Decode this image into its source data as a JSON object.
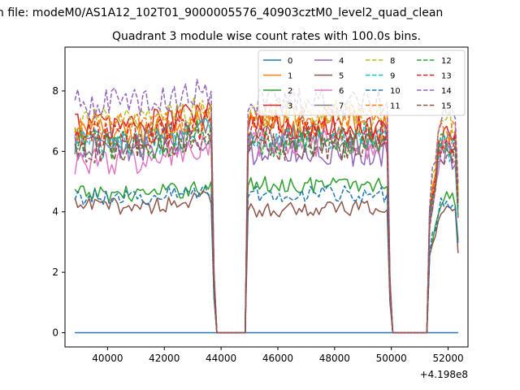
{
  "figure": {
    "suptitle": "n file: modeM0/AS1A12_102T01_9000005576_40903cztM0_level2_quad_clean",
    "title": "Quadrant 3 module wise count rates with 100.0s bins.",
    "offset_label": "+4.198e8"
  },
  "chart_data": {
    "type": "line",
    "title": "Quadrant 3 module wise count rates with 100.0s bins.",
    "xlabel": "",
    "ylabel": "",
    "x_offset": 419800000,
    "xlim": [
      38500,
      52700
    ],
    "ylim": [
      -0.47,
      9.45
    ],
    "x_ticks": [
      40000,
      42000,
      44000,
      46000,
      48000,
      50000,
      52000
    ],
    "x_tick_labels": [
      "40000",
      "42000",
      "44000",
      "46000",
      "48000",
      "50000",
      "52000"
    ],
    "y_ticks": [
      0,
      2,
      4,
      6,
      8
    ],
    "y_tick_labels": [
      "0",
      "2",
      "4",
      "6",
      "8"
    ],
    "grid": false,
    "legend_position": "top-right",
    "legend_columns": 4,
    "data_range": {
      "x_start": 38850,
      "x_end": 52350,
      "bin": 100
    },
    "gaps": [
      [
        43800,
        44900
      ],
      [
        50000,
        51300
      ]
    ],
    "series": [
      {
        "name": "0",
        "color": "#1f77b4",
        "dash": "solid",
        "level": [
          0,
          0,
          0
        ]
      },
      {
        "name": "1",
        "color": "#ff7f0e",
        "dash": "solid",
        "level": [
          6.6,
          6.8,
          6.5
        ]
      },
      {
        "name": "2",
        "color": "#2ca02c",
        "dash": "solid",
        "level": [
          4.6,
          4.9,
          4.4
        ]
      },
      {
        "name": "3",
        "color": "#d62728",
        "dash": "solid",
        "level": [
          6.9,
          6.8,
          6.4
        ]
      },
      {
        "name": "4",
        "color": "#9467bd",
        "dash": "solid",
        "level": [
          6.1,
          6.0,
          5.9
        ]
      },
      {
        "name": "5",
        "color": "#8c564b",
        "dash": "solid",
        "level": [
          4.2,
          4.1,
          4.0
        ]
      },
      {
        "name": "6",
        "color": "#e377c2",
        "dash": "solid",
        "level": [
          5.7,
          6.2,
          6.0
        ]
      },
      {
        "name": "7",
        "color": "#7f7f7f",
        "dash": "solid",
        "level": [
          6.3,
          6.4,
          6.2
        ]
      },
      {
        "name": "8",
        "color": "#bcbd22",
        "dash": "dashed",
        "level": [
          7.0,
          7.2,
          6.9
        ]
      },
      {
        "name": "9",
        "color": "#17becf",
        "dash": "dashed",
        "level": [
          6.3,
          6.5,
          6.1
        ]
      },
      {
        "name": "10",
        "color": "#1f77b4",
        "dash": "dashed",
        "level": [
          4.5,
          4.6,
          4.3
        ]
      },
      {
        "name": "11",
        "color": "#ff7f0e",
        "dash": "dashed",
        "level": [
          6.8,
          7.2,
          6.6
        ]
      },
      {
        "name": "12",
        "color": "#2ca02c",
        "dash": "dashed",
        "level": [
          6.2,
          6.3,
          6.1
        ]
      },
      {
        "name": "13",
        "color": "#d62728",
        "dash": "dashed",
        "level": [
          6.5,
          6.7,
          6.4
        ]
      },
      {
        "name": "14",
        "color": "#9467bd",
        "dash": "dashed",
        "level": [
          7.6,
          7.6,
          7.3
        ]
      },
      {
        "name": "15",
        "color": "#8c564b",
        "dash": "dashed",
        "level": [
          6.1,
          6.2,
          6.0
        ]
      }
    ]
  }
}
